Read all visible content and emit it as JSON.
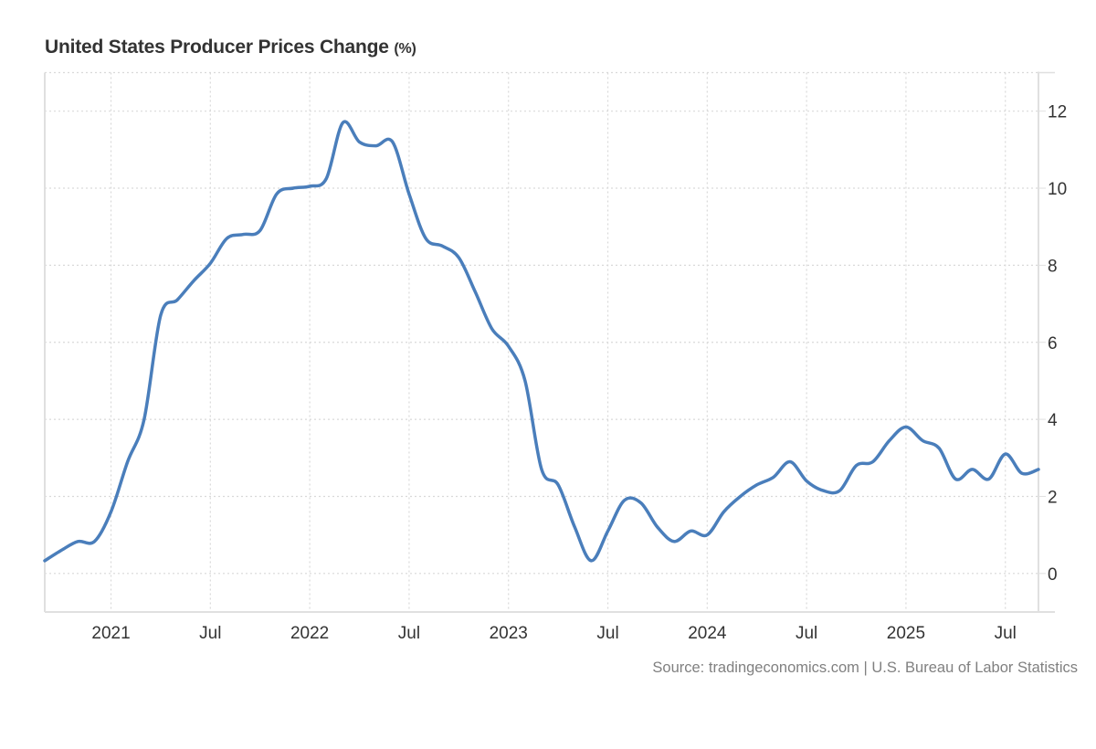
{
  "title": "United States Producer Prices Change",
  "title_unit": "(%)",
  "source": "Source: tradingeconomics.com | U.S. Bureau of Labor Statistics",
  "colors": {
    "line": "#4a7ebb",
    "grid": "#d9d9d9",
    "axis": "#e0e0e0",
    "tick_text": "#333333"
  },
  "chart_data": {
    "type": "line",
    "title": "United States Producer Prices Change (%)",
    "xlabel": "",
    "ylabel": "",
    "y_axis_side": "right",
    "ylim": [
      -1,
      13
    ],
    "yticks": [
      0,
      2,
      4,
      6,
      8,
      10,
      12
    ],
    "grid": true,
    "xlim": [
      "2020-09",
      "2025-09"
    ],
    "xticks": [
      {
        "date": "2021-01",
        "label": "2021"
      },
      {
        "date": "2021-07",
        "label": "Jul"
      },
      {
        "date": "2022-01",
        "label": "2022"
      },
      {
        "date": "2022-07",
        "label": "Jul"
      },
      {
        "date": "2023-01",
        "label": "2023"
      },
      {
        "date": "2023-07",
        "label": "Jul"
      },
      {
        "date": "2024-01",
        "label": "2024"
      },
      {
        "date": "2024-07",
        "label": "Jul"
      },
      {
        "date": "2025-01",
        "label": "2025"
      },
      {
        "date": "2025-07",
        "label": "Jul"
      }
    ],
    "series": [
      {
        "name": "Producer Prices Change (%)",
        "x": [
          "2020-09",
          "2020-10",
          "2020-11",
          "2020-12",
          "2021-01",
          "2021-02",
          "2021-03",
          "2021-04",
          "2021-05",
          "2021-06",
          "2021-07",
          "2021-08",
          "2021-09",
          "2021-10",
          "2021-11",
          "2021-12",
          "2022-01",
          "2022-02",
          "2022-03",
          "2022-04",
          "2022-05",
          "2022-06",
          "2022-07",
          "2022-08",
          "2022-09",
          "2022-10",
          "2022-11",
          "2022-12",
          "2023-01",
          "2023-02",
          "2023-03",
          "2023-04",
          "2023-05",
          "2023-06",
          "2023-07",
          "2023-08",
          "2023-09",
          "2023-10",
          "2023-11",
          "2023-12",
          "2024-01",
          "2024-02",
          "2024-03",
          "2024-04",
          "2024-05",
          "2024-06",
          "2024-07",
          "2024-08",
          "2024-09",
          "2024-10",
          "2024-11",
          "2024-12",
          "2025-01",
          "2025-02",
          "2025-03",
          "2025-04",
          "2025-05",
          "2025-06",
          "2025-07",
          "2025-08",
          "2025-09"
        ],
        "values": [
          0.33,
          0.6,
          0.83,
          0.83,
          1.6,
          2.9,
          4.0,
          6.7,
          7.1,
          7.6,
          8.05,
          8.7,
          8.8,
          8.9,
          9.85,
          10.0,
          10.05,
          10.25,
          11.7,
          11.2,
          11.1,
          11.2,
          9.85,
          8.7,
          8.5,
          8.2,
          7.3,
          6.35,
          5.9,
          5.0,
          2.7,
          2.3,
          1.2,
          0.33,
          1.1,
          1.9,
          1.83,
          1.2,
          0.83,
          1.1,
          1.0,
          1.6,
          2.0,
          2.3,
          2.5,
          2.9,
          2.4,
          2.15,
          2.15,
          2.8,
          2.9,
          3.45,
          3.8,
          3.45,
          3.25,
          2.45,
          2.7,
          2.45,
          3.1,
          2.6,
          2.7
        ]
      }
    ],
    "legend": "none"
  }
}
